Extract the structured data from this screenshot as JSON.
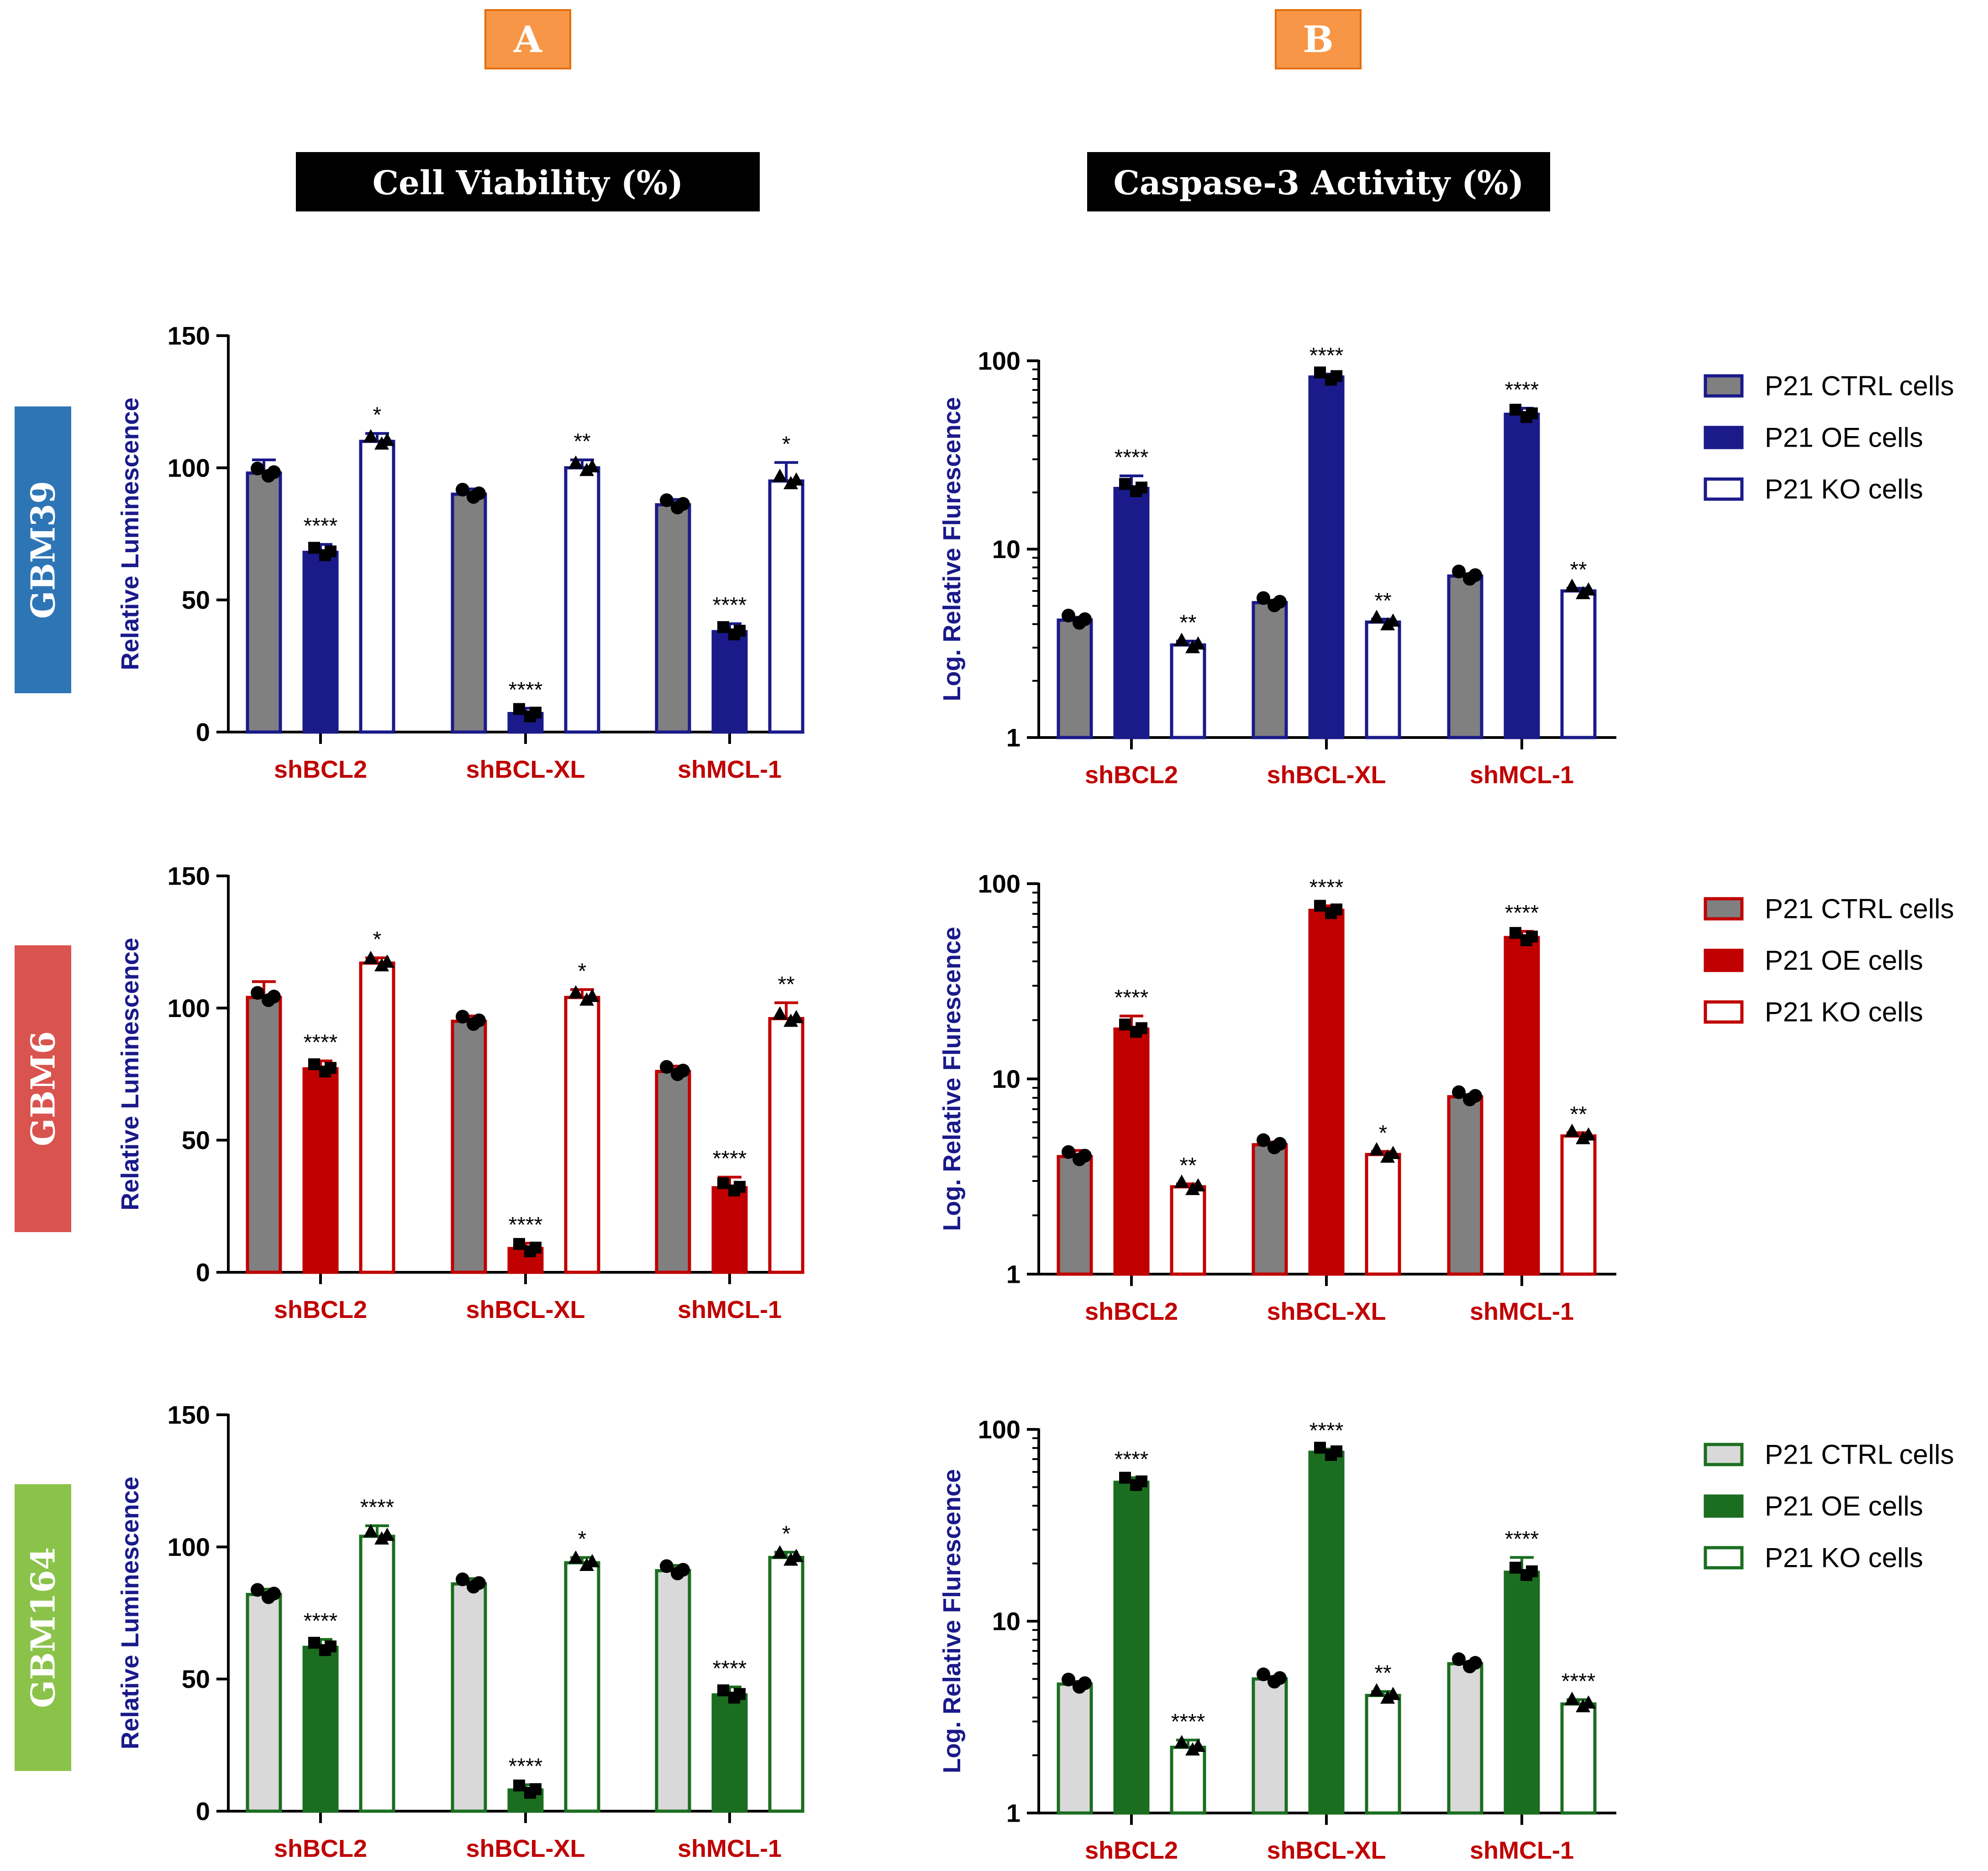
{
  "panels": {
    "a_label": "A",
    "b_label": "B",
    "a_title": "Cell Viability (%)",
    "b_title": "Caspase-3 Activity (%)",
    "badge_color": "#f79646"
  },
  "legend_labels": [
    "P21 CTRL cells",
    "P21 OE cells",
    "P21 KO cells"
  ],
  "chart_data": [
    {
      "id": "a-gbm39",
      "row": "GBM39",
      "panel": "A",
      "type": "bar",
      "categories": [
        "shBCL2",
        "shBCL-XL",
        "shMCL-1"
      ],
      "series": [
        {
          "name": "P21 CTRL cells",
          "values": [
            98,
            90,
            86
          ]
        },
        {
          "name": "P21 OE cells",
          "values": [
            68,
            7,
            38
          ]
        },
        {
          "name": "P21 KO cells",
          "values": [
            110,
            100,
            95
          ]
        }
      ],
      "errors": [
        [
          5,
          2,
          2
        ],
        [
          3,
          2,
          3
        ],
        [
          3,
          3,
          7
        ]
      ],
      "significance": [
        [
          "",
          "",
          ""
        ],
        [
          "****",
          "****",
          "****"
        ],
        [
          "*",
          "**",
          "*"
        ]
      ],
      "ylabel": "Relative Luminescence",
      "xlabel": "",
      "yscale": "linear",
      "ylim": [
        0,
        150
      ],
      "yticks": [
        0,
        50,
        100,
        150
      ],
      "legend": false
    },
    {
      "id": "b-gbm39",
      "row": "GBM39",
      "panel": "B",
      "type": "bar",
      "categories": [
        "shBCL2",
        "shBCL-XL",
        "shMCL-1"
      ],
      "series": [
        {
          "name": "P21 CTRL cells",
          "values": [
            4.2,
            5.2,
            7.2
          ]
        },
        {
          "name": "P21 OE cells",
          "values": [
            21,
            82,
            52
          ]
        },
        {
          "name": "P21 KO cells",
          "values": [
            3.1,
            4.1,
            6.0
          ]
        }
      ],
      "errors": [
        [
          0.15,
          0.15,
          0.2
        ],
        [
          3.5,
          3,
          4
        ],
        [
          0.15,
          0.15,
          0.2
        ]
      ],
      "significance": [
        [
          "",
          "",
          ""
        ],
        [
          "****",
          "****",
          "****"
        ],
        [
          "**",
          "**",
          "**"
        ]
      ],
      "ylabel": "Log. Relative Flurescence",
      "xlabel": "",
      "yscale": "log",
      "ylim": [
        1,
        100
      ],
      "yticks": [
        1,
        10,
        100
      ],
      "legend": true,
      "legend_position": "right"
    },
    {
      "id": "a-gbm6",
      "row": "GBM6",
      "panel": "A",
      "type": "bar",
      "categories": [
        "shBCL2",
        "shBCL-XL",
        "shMCL-1"
      ],
      "series": [
        {
          "name": "P21 CTRL cells",
          "values": [
            104,
            95,
            76
          ]
        },
        {
          "name": "P21 OE cells",
          "values": [
            77,
            9,
            32
          ]
        },
        {
          "name": "P21 KO cells",
          "values": [
            117,
            104,
            96
          ]
        }
      ],
      "errors": [
        [
          6,
          2,
          2
        ],
        [
          3,
          2,
          4
        ],
        [
          2,
          3,
          6
        ]
      ],
      "significance": [
        [
          "",
          "",
          ""
        ],
        [
          "****",
          "****",
          "****"
        ],
        [
          "*",
          "*",
          "**"
        ]
      ],
      "ylabel": "Relative Luminescence",
      "xlabel": "",
      "yscale": "linear",
      "ylim": [
        0,
        150
      ],
      "yticks": [
        0,
        50,
        100,
        150
      ],
      "legend": false
    },
    {
      "id": "b-gbm6",
      "row": "GBM6",
      "panel": "B",
      "type": "bar",
      "categories": [
        "shBCL2",
        "shBCL-XL",
        "shMCL-1"
      ],
      "series": [
        {
          "name": "P21 CTRL cells",
          "values": [
            4.0,
            4.6,
            8.1
          ]
        },
        {
          "name": "P21 OE cells",
          "values": [
            18,
            73,
            53
          ]
        },
        {
          "name": "P21 KO cells",
          "values": [
            2.8,
            4.1,
            5.1
          ]
        }
      ],
      "errors": [
        [
          0.3,
          0.15,
          0.2
        ],
        [
          3,
          4,
          4
        ],
        [
          0.1,
          0.15,
          0.2
        ]
      ],
      "significance": [
        [
          "",
          "",
          ""
        ],
        [
          "****",
          "****",
          "****"
        ],
        [
          "**",
          "*",
          "**"
        ]
      ],
      "ylabel": "Log. Relative Flurescence",
      "xlabel": "",
      "yscale": "log",
      "ylim": [
        1,
        100
      ],
      "yticks": [
        1,
        10,
        100
      ],
      "legend": true,
      "legend_position": "right"
    },
    {
      "id": "a-gbm164",
      "row": "GBM164",
      "panel": "A",
      "type": "bar",
      "categories": [
        "shBCL2",
        "shBCL-XL",
        "shMCL-1"
      ],
      "series": [
        {
          "name": "P21 CTRL cells",
          "values": [
            82,
            86,
            91
          ]
        },
        {
          "name": "P21 OE cells",
          "values": [
            62,
            8,
            44
          ]
        },
        {
          "name": "P21 KO cells",
          "values": [
            104,
            94,
            96
          ]
        }
      ],
      "errors": [
        [
          2,
          2,
          2
        ],
        [
          3,
          2,
          3
        ],
        [
          4,
          2,
          2
        ]
      ],
      "significance": [
        [
          "",
          "",
          ""
        ],
        [
          "****",
          "****",
          "****"
        ],
        [
          "****",
          "*",
          "*"
        ]
      ],
      "ylabel": "Relative Luminescence",
      "xlabel": "",
      "yscale": "linear",
      "ylim": [
        0,
        150
      ],
      "yticks": [
        0,
        50,
        100,
        150
      ],
      "legend": false
    },
    {
      "id": "b-gbm164",
      "row": "GBM164",
      "panel": "B",
      "type": "bar",
      "categories": [
        "shBCL2",
        "shBCL-XL",
        "shMCL-1"
      ],
      "series": [
        {
          "name": "P21 CTRL cells",
          "values": [
            4.7,
            5.0,
            6.0
          ]
        },
        {
          "name": "P21 OE cells",
          "values": [
            53,
            76,
            18
          ]
        },
        {
          "name": "P21 KO cells",
          "values": [
            2.2,
            4.1,
            3.7
          ]
        }
      ],
      "errors": [
        [
          0.15,
          0.15,
          0.15
        ],
        [
          3,
          3,
          3.5
        ],
        [
          0.2,
          0.2,
          0.2
        ]
      ],
      "significance": [
        [
          "",
          "",
          ""
        ],
        [
          "****",
          "****",
          "****"
        ],
        [
          "****",
          "**",
          "****"
        ]
      ],
      "ylabel": "Log. Relative Flurescence",
      "xlabel": "",
      "yscale": "log",
      "ylim": [
        1,
        100
      ],
      "yticks": [
        1,
        10,
        100
      ],
      "legend": true,
      "legend_position": "right"
    }
  ],
  "rows": [
    {
      "label": "GBM39",
      "color": "#2e75b6",
      "accent": "#1a1a8a",
      "ctrl_fill": "#808080"
    },
    {
      "label": "GBM6",
      "color": "#d9534f",
      "accent": "#c00000",
      "ctrl_fill": "#808080"
    },
    {
      "label": "GBM164",
      "color": "#8bc34a",
      "accent": "#1b6e20",
      "ctrl_fill": "#d9d9d9"
    }
  ],
  "colors": {
    "axis_label": "#1a1a8a",
    "category_label": "#c00000",
    "axis": "#000000",
    "text": "#000000"
  }
}
